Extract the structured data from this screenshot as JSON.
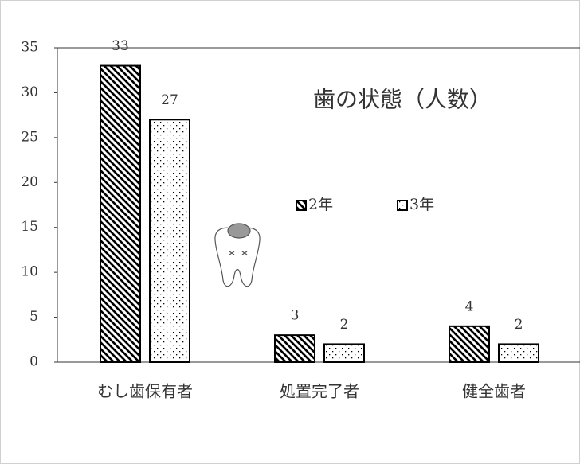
{
  "chart_data": {
    "type": "bar",
    "title": "歯の状態（人数）",
    "categories": [
      "むし歯保有者",
      "処置完了者",
      "健全歯者"
    ],
    "series": [
      {
        "name": "2年",
        "color": "#000000",
        "pattern": "diagonal",
        "values": [
          33,
          3,
          4
        ]
      },
      {
        "name": "3年",
        "color": "#000000",
        "pattern": "dots",
        "values": [
          27,
          2,
          2
        ]
      }
    ],
    "ylim": [
      0,
      35
    ],
    "yticks": [
      0,
      5,
      10,
      15,
      20,
      25,
      30,
      35
    ],
    "grid": false,
    "legend": "center"
  }
}
